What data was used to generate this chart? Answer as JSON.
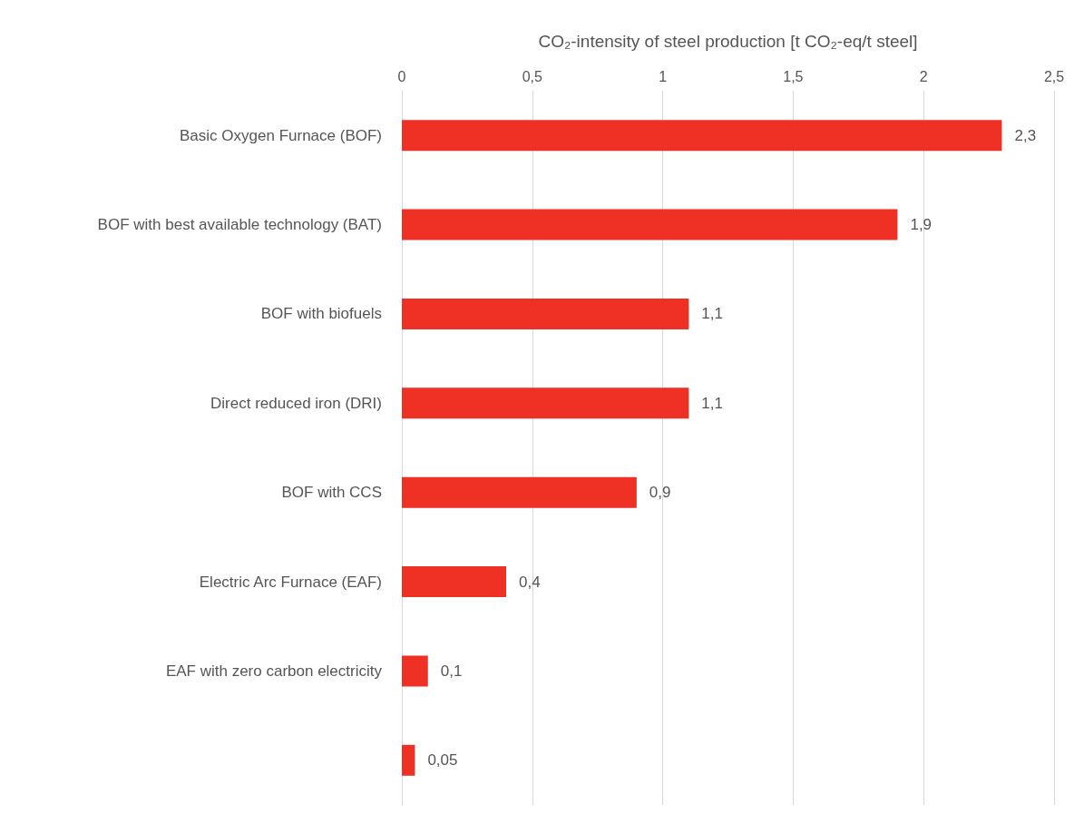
{
  "chart_data": {
    "type": "bar",
    "orientation": "horizontal",
    "xlabel": "CO₂-intensity of steel production [t CO₂-eq/t steel]",
    "categories": [
      "Basic Oxygen Furnace (BOF)",
      "BOF with best available technology (BAT)",
      "BOF with biofuels",
      "Direct reduced iron (DRI)",
      "BOF with CCS",
      "Electric Arc Furnace (EAF)",
      "EAF with zero carbon electricity",
      null
    ],
    "values": [
      2.3,
      1.9,
      1.1,
      1.1,
      0.9,
      0.4,
      0.1,
      0.05
    ],
    "value_labels": [
      "2,3",
      "1,9",
      "1,1",
      "1,1",
      "0,9",
      "0,4",
      "0,1",
      "0,05"
    ],
    "color": "#ee3124",
    "xlim": [
      0,
      2.5
    ],
    "xticks": [
      0,
      {
        "value": 0.5,
        "label": "0,5"
      },
      1,
      {
        "value": 1.5,
        "label": "1,5"
      },
      2,
      {
        "value": 2.5,
        "label": "2,5"
      }
    ],
    "grid": "x"
  }
}
